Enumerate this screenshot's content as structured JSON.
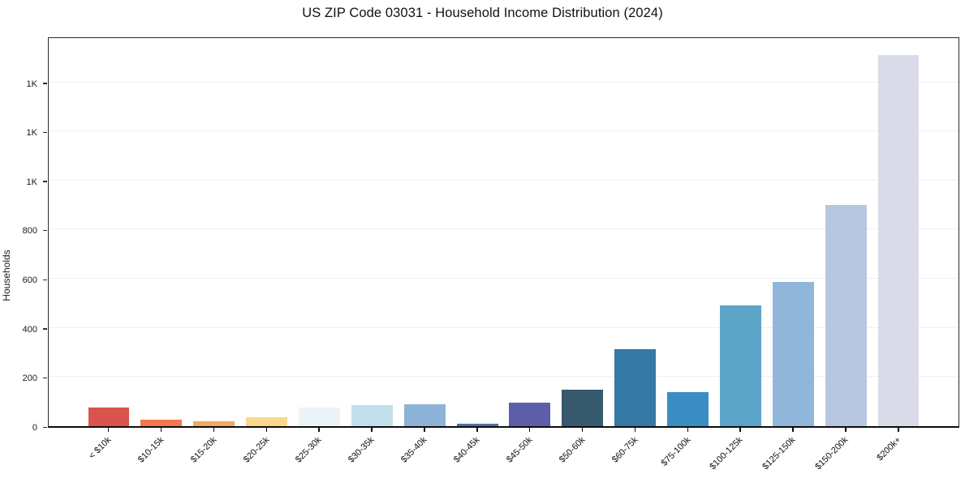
{
  "title": "US ZIP Code 03031 - Household Income Distribution (2024)",
  "y_axis_label": "Households",
  "chart_data": {
    "type": "bar",
    "title": "US ZIP Code 03031 - Household Income Distribution (2024)",
    "xlabel": "",
    "ylabel": "Households",
    "categories": [
      "< $10k",
      "$10-15k",
      "$15-20k",
      "$20-25k",
      "$25-30k",
      "$30-35k",
      "$35-40k",
      "$40-45k",
      "$45-50k",
      "$50-60k",
      "$60-75k",
      "$75-100k",
      "$100-125k",
      "$125-150k",
      "$150-200k",
      "$200k+"
    ],
    "values": [
      76,
      28,
      20,
      37,
      75,
      85,
      90,
      10,
      95,
      148,
      312,
      138,
      492,
      588,
      900,
      1510
    ],
    "bar_colors": [
      "#d9544d",
      "#f0784f",
      "#f0a963",
      "#f8d98b",
      "#e9f3f8",
      "#c2dfec",
      "#8db4d8",
      "#50719c",
      "#5c5fa8",
      "#36596d",
      "#347aa5",
      "#3a8ec4",
      "#5ba4c8",
      "#90b6da",
      "#b7c7e0",
      "#dadbe8"
    ],
    "ylim": [
      0,
      1580
    ],
    "yticks": [
      {
        "value": 0,
        "label": "0"
      },
      {
        "value": 200,
        "label": "200"
      },
      {
        "value": 400,
        "label": "400"
      },
      {
        "value": 600,
        "label": "600"
      },
      {
        "value": 800,
        "label": "800"
      },
      {
        "value": 1000,
        "label": "1K"
      },
      {
        "value": 1200,
        "label": "1K"
      },
      {
        "value": 1400,
        "label": "1K"
      }
    ],
    "grid": "horizontal",
    "legend": "none",
    "x_tick_rotation_deg": 45
  },
  "colors": {
    "background": "#ffffff",
    "grid": "#edeff3",
    "spine": "#2b2b2b",
    "axis_bottom": "#0d0d0d",
    "text": "#1a1a1a"
  }
}
